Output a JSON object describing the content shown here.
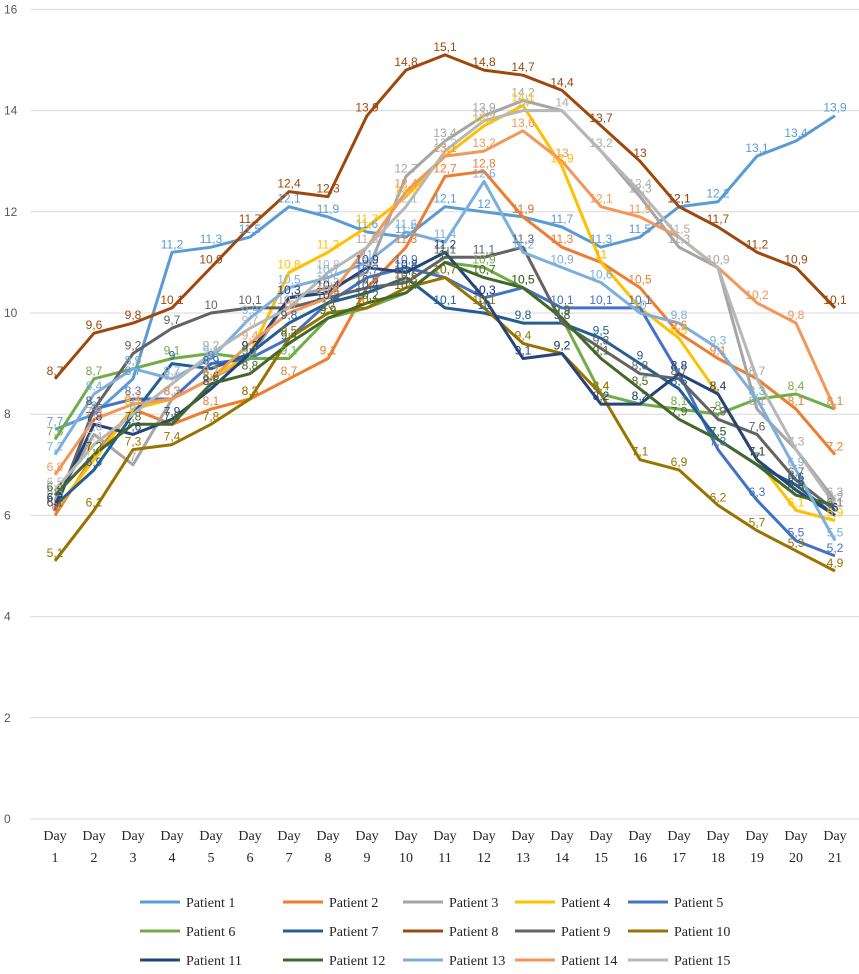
{
  "chart_data": {
    "type": "line",
    "title": "",
    "xlabel": "",
    "ylabel": "",
    "ylim": [
      0,
      16
    ],
    "yticks": [
      "0",
      "2",
      "4",
      "6",
      "8",
      "10",
      "12",
      "14",
      "16"
    ],
    "grid": true,
    "legend_position": "bottom",
    "x_top": [
      "Day",
      "Day",
      "Day",
      "Day",
      "Day",
      "Day",
      "Day",
      "Day",
      "Day",
      "Day",
      "Day",
      "Day",
      "Day",
      "Day",
      "Day",
      "Day",
      "Day",
      "Day",
      "Day",
      "Day",
      "Day"
    ],
    "x_bottom": [
      "1",
      "2",
      "3",
      "4",
      "5",
      "6",
      "7",
      "8",
      "9",
      "10",
      "11",
      "12",
      "13",
      "14",
      "15",
      "16",
      "17",
      "18",
      "19",
      "20",
      "21"
    ],
    "series": [
      {
        "name": "Patient 1",
        "color": "#5b9bd5",
        "values": [
          7.7,
          8.0,
          8.7,
          11.2,
          11.3,
          11.5,
          12.1,
          11.9,
          11.6,
          11.5,
          12.1,
          12.0,
          11.9,
          11.7,
          11.3,
          11.5,
          12.1,
          12.2,
          13.1,
          13.4,
          13.9
        ]
      },
      {
        "name": "Patient 2",
        "color": "#ed7d31",
        "values": [
          6.0,
          7.2,
          8.1,
          7.8,
          8.1,
          8.3,
          8.7,
          9.1,
          10.5,
          11.3,
          12.7,
          12.8,
          11.9,
          11.3,
          11.0,
          10.5,
          9.6,
          9.1,
          8.7,
          8.1,
          7.2
        ]
      },
      {
        "name": "Patient 3",
        "color": "#a5a5a5",
        "values": [
          6.3,
          7.6,
          7.0,
          8.3,
          8.7,
          9.1,
          10.3,
          10.5,
          10.8,
          12.7,
          13.4,
          13.9,
          14.2,
          14.0,
          13.2,
          12.3,
          11.3,
          10.9,
          8.1,
          7.3,
          6.3
        ]
      },
      {
        "name": "Patient 4",
        "color": "#ffc000",
        "values": [
          6.1,
          7.1,
          8.1,
          8.3,
          8.7,
          9.2,
          10.8,
          11.2,
          11.7,
          12.3,
          13.1,
          13.7,
          14.1,
          12.9,
          11.0,
          10.1,
          9.5,
          8.4,
          7.1,
          6.1,
          5.9
        ]
      },
      {
        "name": "Patient 5",
        "color": "#4472c4",
        "values": [
          6.1,
          8.1,
          8.3,
          8.3,
          9.0,
          9.1,
          9.5,
          10.2,
          10.7,
          10.9,
          10.7,
          10.3,
          10.5,
          10.1,
          10.1,
          10.1,
          8.8,
          7.3,
          6.3,
          5.5,
          5.2
        ]
      },
      {
        "name": "Patient 6",
        "color": "#70ad47",
        "values": [
          7.5,
          8.7,
          8.9,
          9.1,
          9.2,
          9.1,
          9.1,
          9.9,
          10.1,
          10.4,
          11.0,
          10.9,
          10.5,
          9.9,
          8.4,
          8.2,
          8.1,
          8.0,
          8.3,
          8.4,
          8.1
        ]
      },
      {
        "name": "Patient 7",
        "color": "#255e91",
        "values": [
          6.2,
          6.9,
          8.0,
          9.0,
          8.9,
          9.2,
          9.8,
          10.2,
          10.4,
          10.7,
          10.1,
          10.0,
          9.8,
          9.8,
          9.5,
          9.0,
          8.5,
          7.5,
          7.0,
          6.6,
          6.0
        ]
      },
      {
        "name": "Patient 8",
        "color": "#9e480e",
        "values": [
          8.7,
          9.6,
          9.8,
          10.1,
          10.9,
          11.7,
          12.4,
          12.3,
          13.9,
          14.8,
          15.1,
          14.8,
          14.7,
          14.4,
          13.7,
          13.0,
          12.1,
          11.7,
          11.2,
          10.9,
          10.1
        ]
      },
      {
        "name": "Patient 9",
        "color": "#636363",
        "values": [
          6.1,
          8.1,
          9.2,
          9.7,
          10.0,
          10.1,
          10.1,
          10.3,
          10.5,
          10.6,
          11.1,
          11.1,
          11.3,
          9.8,
          9.3,
          8.8,
          8.7,
          7.9,
          7.6,
          6.7,
          6.1
        ]
      },
      {
        "name": "Patient 10",
        "color": "#997300",
        "values": [
          5.1,
          6.1,
          7.3,
          7.4,
          7.8,
          8.3,
          9.5,
          10.0,
          10.1,
          10.5,
          10.7,
          10.1,
          9.4,
          9.2,
          8.4,
          7.1,
          6.9,
          6.2,
          5.7,
          5.3,
          4.9
        ]
      },
      {
        "name": "Patient 11",
        "color": "#264478",
        "values": [
          6.2,
          7.8,
          7.6,
          7.9,
          8.5,
          9.2,
          10.3,
          10.4,
          10.9,
          10.8,
          11.2,
          10.3,
          9.1,
          9.2,
          8.2,
          8.2,
          8.8,
          8.4,
          7.1,
          6.5,
          6.0
        ]
      },
      {
        "name": "Patient 12",
        "color": "#43682b",
        "values": [
          6.4,
          7.2,
          7.8,
          7.8,
          8.6,
          8.8,
          9.4,
          9.9,
          10.2,
          10.4,
          11.0,
          10.7,
          10.5,
          9.9,
          9.1,
          8.5,
          7.9,
          7.5,
          7.0,
          6.4,
          6.2
        ]
      },
      {
        "name": "Patient 13",
        "color": "#7cafdd",
        "values": [
          7.2,
          8.4,
          8.9,
          8.7,
          9.1,
          9.9,
          10.5,
          10.7,
          11.0,
          11.6,
          11.4,
          12.6,
          11.2,
          10.9,
          10.6,
          10.0,
          9.8,
          9.3,
          8.3,
          6.9,
          5.5
        ]
      },
      {
        "name": "Patient 14",
        "color": "#f1975a",
        "values": [
          6.8,
          7.9,
          8.2,
          8.3,
          8.7,
          9.4,
          10.0,
          10.3,
          11.3,
          12.4,
          13.1,
          13.2,
          13.6,
          13.0,
          12.1,
          11.9,
          11.5,
          10.9,
          10.2,
          9.8,
          8.1
        ]
      },
      {
        "name": "Patient 15",
        "color": "#b7b7b7",
        "values": [
          6.5,
          7.4,
          8.0,
          8.6,
          9.2,
          9.7,
          10.1,
          10.8,
          11.3,
          12.1,
          13.2,
          13.8,
          14.0,
          14.0,
          13.2,
          12.4,
          11.5,
          10.9,
          8.7,
          7.3,
          6.2
        ]
      }
    ]
  }
}
